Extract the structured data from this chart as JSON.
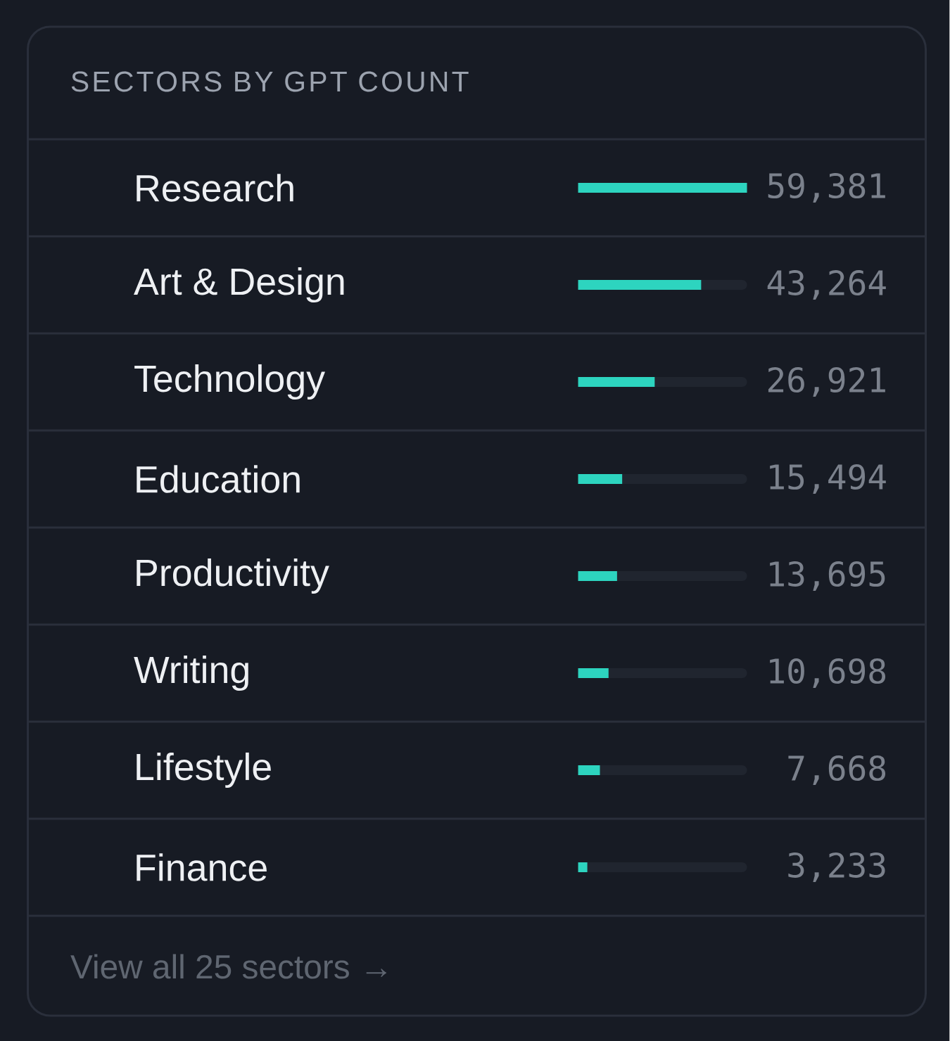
{
  "chart_data": {
    "type": "bar",
    "orientation": "horizontal",
    "title": "SECTORS BY GPT COUNT",
    "categories": [
      "Research",
      "Art & Design",
      "Technology",
      "Education",
      "Productivity",
      "Writing",
      "Lifestyle",
      "Finance"
    ],
    "values": [
      59381,
      43264,
      26921,
      15494,
      13695,
      10698,
      7668,
      3233
    ],
    "value_labels": [
      "59,381",
      "43,264",
      "26,921",
      "15,494",
      "13,695",
      "10,698",
      "7,668",
      "3,233"
    ],
    "color": "#2dd4bf",
    "tick_labels": "y",
    "annotations": [
      "View all 25 sectors →"
    ]
  }
}
